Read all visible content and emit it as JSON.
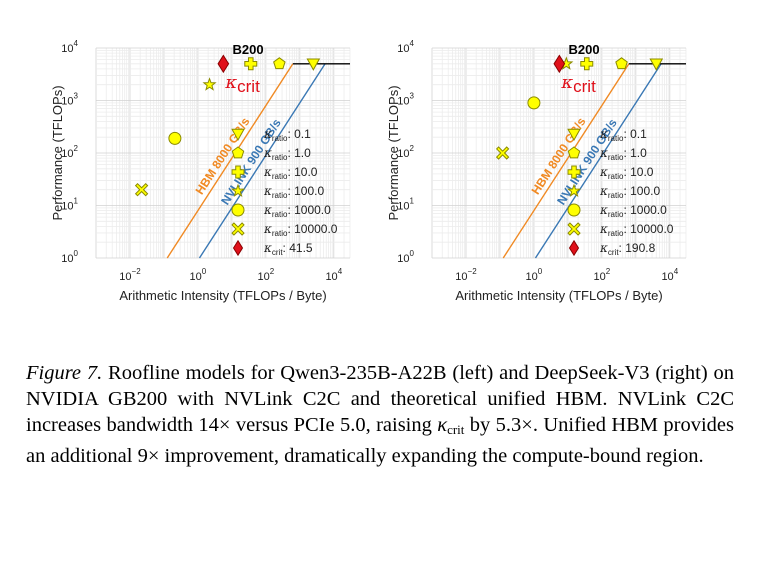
{
  "chart_data": [
    {
      "type": "line",
      "title": "B200",
      "xlabel": "Arithmetic Intensity (TFLOPs / Byte)",
      "ylabel": "Performance (TFLOPs)",
      "x_scale": "log",
      "y_scale": "log",
      "xlim": [
        0.001,
        30000
      ],
      "ylim": [
        1,
        10000
      ],
      "x_ticks": [
        {
          "base": "10",
          "exp": "−2",
          "value": 0.01
        },
        {
          "base": "10",
          "exp": "0",
          "value": 1
        },
        {
          "base": "10",
          "exp": "2",
          "value": 100
        },
        {
          "base": "10",
          "exp": "4",
          "value": 10000
        }
      ],
      "y_ticks": [
        {
          "base": "10",
          "exp": "0",
          "value": 1
        },
        {
          "base": "10",
          "exp": "1",
          "value": 10
        },
        {
          "base": "10",
          "exp": "2",
          "value": 100
        },
        {
          "base": "10",
          "exp": "3",
          "value": 1000
        },
        {
          "base": "10",
          "exp": "4",
          "value": 10000
        }
      ],
      "grid": true,
      "peak_performance": 5000,
      "roofs": [
        {
          "name": "HBM 8000 GB/s",
          "bandwidth_tb_s": 8.0,
          "color": "#f08a24"
        },
        {
          "name": "NVLINK 900 GB/s",
          "bandwidth_tb_s": 0.9,
          "color": "#3a78b4"
        }
      ],
      "kappa_crit_label": {
        "sym": "κ",
        "sub": "crit"
      },
      "points": [
        {
          "label": "0.1",
          "marker": "triangle",
          "x": 2500,
          "y": 5000
        },
        {
          "label": "1.0",
          "marker": "pentagon",
          "x": 250,
          "y": 5000
        },
        {
          "label": "10.0",
          "marker": "plus",
          "x": 36,
          "y": 5000
        },
        {
          "label": "100.0",
          "marker": "star",
          "x": 2.2,
          "y": 2000
        },
        {
          "label": "1000.0",
          "marker": "circle",
          "x": 0.21,
          "y": 190
        },
        {
          "label": "10000.0",
          "marker": "x",
          "x": 0.022,
          "y": 20
        }
      ],
      "crit_point": {
        "label": "41.5",
        "marker": "diamond",
        "x": 5.6,
        "y": 5000
      },
      "legend": {
        "position": "lower-right",
        "prefix": "κ",
        "sub_ratio": "ratio",
        "sub_crit": "crit"
      }
    },
    {
      "type": "line",
      "title": "B200",
      "xlabel": "Arithmetic Intensity (TFLOPs / Byte)",
      "ylabel": "Performance (TFLOPs)",
      "x_scale": "log",
      "y_scale": "log",
      "xlim": [
        0.001,
        30000
      ],
      "ylim": [
        1,
        10000
      ],
      "x_ticks": [
        {
          "base": "10",
          "exp": "−2",
          "value": 0.01
        },
        {
          "base": "10",
          "exp": "0",
          "value": 1
        },
        {
          "base": "10",
          "exp": "2",
          "value": 100
        },
        {
          "base": "10",
          "exp": "4",
          "value": 10000
        }
      ],
      "y_ticks": [
        {
          "base": "10",
          "exp": "0",
          "value": 1
        },
        {
          "base": "10",
          "exp": "1",
          "value": 10
        },
        {
          "base": "10",
          "exp": "2",
          "value": 100
        },
        {
          "base": "10",
          "exp": "3",
          "value": 1000
        },
        {
          "base": "10",
          "exp": "4",
          "value": 10000
        }
      ],
      "grid": true,
      "peak_performance": 5000,
      "roofs": [
        {
          "name": "HBM 8000 GB/s",
          "bandwidth_tb_s": 8.0,
          "color": "#f08a24"
        },
        {
          "name": "NVLINK 900 GB/s",
          "bandwidth_tb_s": 0.9,
          "color": "#3a78b4"
        }
      ],
      "kappa_crit_label": {
        "sym": "κ",
        "sub": "crit"
      },
      "points": [
        {
          "label": "0.1",
          "marker": "triangle",
          "x": 4000,
          "y": 5000
        },
        {
          "label": "1.0",
          "marker": "pentagon",
          "x": 380,
          "y": 5000
        },
        {
          "label": "10.0",
          "marker": "plus",
          "x": 36,
          "y": 5000
        },
        {
          "label": "100.0",
          "marker": "star",
          "x": 9,
          "y": 5000
        },
        {
          "label": "1000.0",
          "marker": "circle",
          "x": 1.0,
          "y": 900
        },
        {
          "label": "10000.0",
          "marker": "x",
          "x": 0.12,
          "y": 100
        }
      ],
      "crit_point": {
        "label": "190.8",
        "marker": "diamond",
        "x": 5.6,
        "y": 5000
      },
      "legend": {
        "position": "lower-right",
        "prefix": "κ",
        "sub_ratio": "ratio",
        "sub_crit": "crit"
      }
    }
  ],
  "colors": {
    "marker_fill": "#ffff00",
    "marker_edge": "#8a8a00",
    "crit_fill": "#e0101a",
    "roof": "#000000",
    "grid": "#dddddd"
  },
  "caption": {
    "fig_label": "Figure 7.",
    "line1": "Roofline models for Qwen3-235B-A22B (left) and DeepSeek-V3 (right) on NVIDIA GB200 with NVLink C2C and theoretical unified HBM. NVLink C2C increases bandwidth 14× versus PCIe 5.0, raising ",
    "kappa": "κ",
    "kappa_sub": "crit",
    "line2": " by 5.3×. Unified HBM provides an additional 9× improvement, dramatically expanding the compute-bound region."
  }
}
